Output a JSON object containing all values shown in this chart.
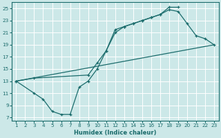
{
  "bg_color": "#cce8e8",
  "grid_color": "#b0d8d8",
  "line_color": "#1a6b6b",
  "marker": "+",
  "xlabel": "Humidex (Indice chaleur)",
  "xlim": [
    0.5,
    23.5
  ],
  "ylim": [
    6.5,
    26
  ],
  "xticks": [
    1,
    2,
    3,
    4,
    5,
    6,
    7,
    8,
    9,
    10,
    11,
    12,
    13,
    14,
    15,
    16,
    17,
    18,
    19,
    20,
    21,
    22,
    23
  ],
  "yticks": [
    7,
    9,
    11,
    13,
    15,
    17,
    19,
    21,
    23,
    25
  ],
  "line1_x": [
    1,
    3,
    4,
    5,
    6,
    7,
    8,
    9,
    10,
    11,
    12,
    13,
    14,
    15,
    16,
    17,
    18,
    19
  ],
  "line1_y": [
    13,
    11,
    10,
    8,
    7.5,
    7.5,
    12,
    13,
    15,
    18,
    21,
    22,
    22.5,
    23,
    23.5,
    24,
    25.2,
    25.2
  ],
  "line2_x": [
    1,
    3,
    9,
    10,
    11,
    12,
    13,
    14,
    15,
    16,
    17,
    18,
    19,
    20,
    21,
    22,
    23
  ],
  "line2_y": [
    13,
    13.5,
    14,
    16,
    18,
    21.5,
    22,
    22.5,
    23,
    23.5,
    24,
    24.8,
    24.5,
    22.5,
    20.5,
    20,
    19
  ],
  "line3_x": [
    1,
    23
  ],
  "line3_y": [
    13,
    19
  ]
}
